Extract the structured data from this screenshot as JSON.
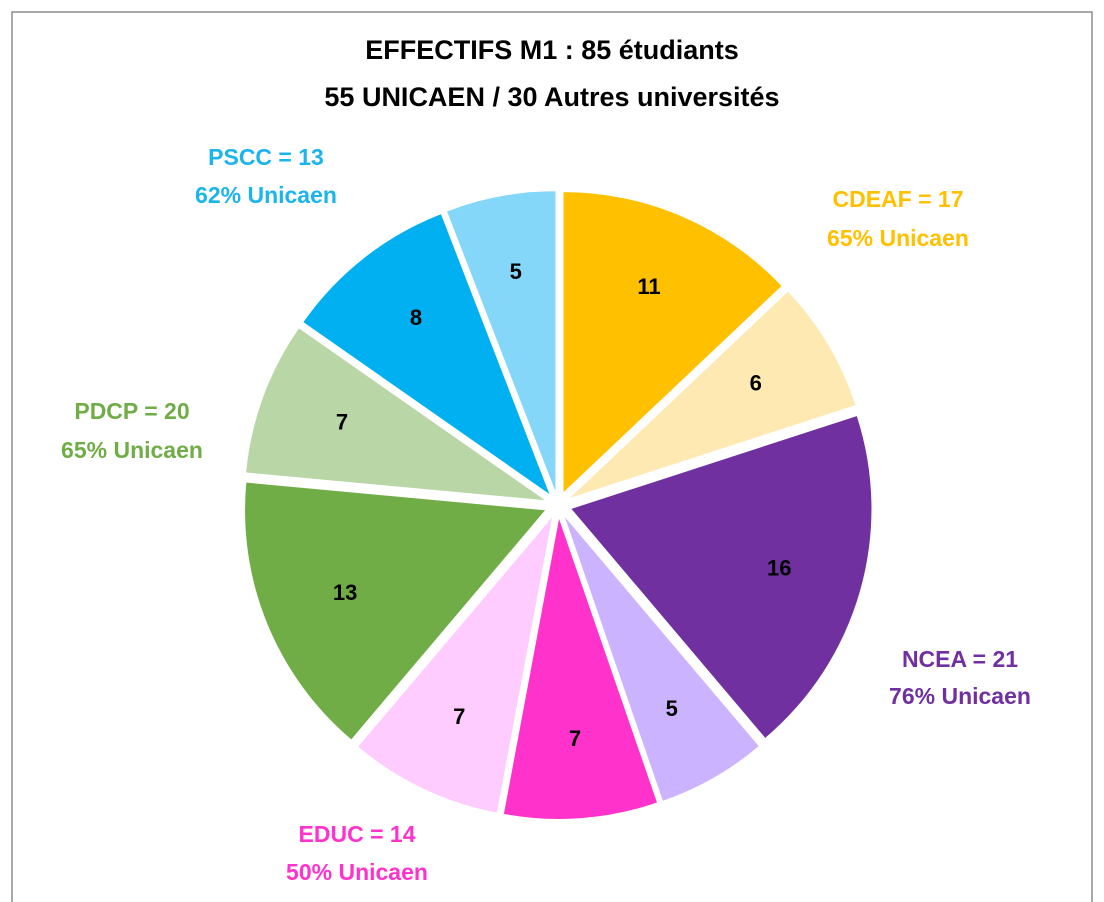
{
  "chart_data": {
    "type": "pie",
    "title": "EFFECTIFS M1 : 85 étudiants",
    "subtitle": "55 UNICAEN / 30 Autres universités",
    "values": [
      11,
      6,
      16,
      5,
      7,
      7,
      13,
      7,
      8,
      5
    ],
    "colors": [
      "#FFC000",
      "#FFE9B3",
      "#7030A0",
      "#CCB3FF",
      "#FF33CC",
      "#FFCCFF",
      "#70AD47",
      "#B9D7A6",
      "#00B0F0",
      "#84D7F8"
    ],
    "groups": [
      {
        "label": "CDEAF = 17",
        "sublabel": "65% Unicaen",
        "color": "#FFC000"
      },
      {
        "label": "NCEA = 21",
        "sublabel": "76% Unicaen",
        "color": "#7030A0"
      },
      {
        "label": "EDUC = 14",
        "sublabel": "50% Unicaen",
        "color": "#FF33CC"
      },
      {
        "label": "PDCP = 20",
        "sublabel": "65% Unicaen",
        "color": "#70AD47"
      },
      {
        "label": "PSCC = 13",
        "sublabel": "62% Unicaen",
        "color": "#1CB4EC"
      }
    ]
  }
}
